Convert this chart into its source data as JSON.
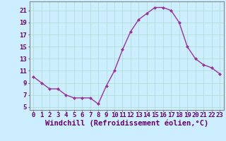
{
  "x": [
    0,
    1,
    2,
    3,
    4,
    5,
    6,
    7,
    8,
    9,
    10,
    11,
    12,
    13,
    14,
    15,
    16,
    17,
    18,
    19,
    20,
    21,
    22,
    23
  ],
  "y": [
    10.0,
    9.0,
    8.0,
    8.0,
    7.0,
    6.5,
    6.5,
    6.5,
    5.5,
    8.5,
    11.0,
    14.5,
    17.5,
    19.5,
    20.5,
    21.5,
    21.5,
    21.0,
    19.0,
    15.0,
    13.0,
    12.0,
    11.5,
    10.5
  ],
  "line_color": "#993399",
  "marker": "D",
  "marker_size": 2,
  "bg_color": "#cceeff",
  "grid_color": "#aaddcc",
  "xlabel": "Windchill (Refroidissement éolien,°C)",
  "xlabel_fontsize": 7.5,
  "xlim": [
    -0.5,
    23.5
  ],
  "ylim": [
    4.5,
    22.5
  ],
  "yticks": [
    5,
    7,
    9,
    11,
    13,
    15,
    17,
    19,
    21
  ],
  "xticks": [
    0,
    1,
    2,
    3,
    4,
    5,
    6,
    7,
    8,
    9,
    10,
    11,
    12,
    13,
    14,
    15,
    16,
    17,
    18,
    19,
    20,
    21,
    22,
    23
  ],
  "tick_label_fontsize": 6.5,
  "line_width": 1.0
}
